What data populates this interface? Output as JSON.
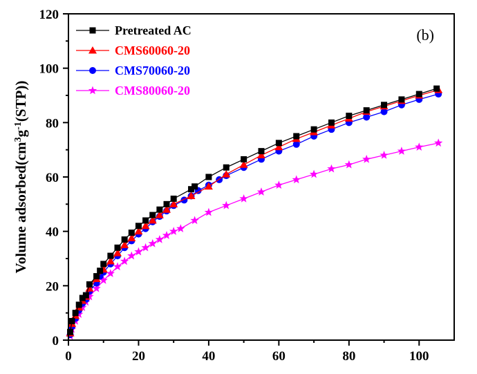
{
  "chart_data": {
    "type": "line",
    "title": "",
    "panel_label": "(b)",
    "xlabel": "",
    "ylabel_parts": [
      "Volume adsorbed(cm",
      "3",
      "g",
      "-1",
      "(STP))"
    ],
    "xlim": [
      0,
      110
    ],
    "ylim": [
      0,
      120
    ],
    "x_ticks": [
      0,
      20,
      40,
      60,
      80,
      100
    ],
    "y_ticks": [
      0,
      20,
      40,
      60,
      80,
      100,
      120
    ],
    "legend_position": "top-left",
    "series": [
      {
        "name": "Pretreated AC",
        "color": "#000000",
        "marker": "square",
        "x": [
          0.5,
          1,
          2,
          3,
          4,
          5,
          6,
          8,
          9,
          10,
          12,
          14,
          16,
          18,
          20,
          22,
          24,
          26,
          28,
          30,
          35,
          36,
          40,
          45,
          50,
          55,
          60,
          65,
          70,
          75,
          80,
          85,
          90,
          95,
          100,
          105
        ],
        "y": [
          3,
          7,
          10,
          13,
          15.5,
          16.5,
          20.5,
          23.5,
          25.5,
          28,
          31,
          34,
          37,
          39.5,
          42,
          44,
          46,
          48,
          50,
          52,
          55.5,
          56.5,
          60,
          63.5,
          66.5,
          69.5,
          72.5,
          75,
          77.5,
          80,
          82.5,
          84.5,
          86.5,
          88.5,
          90.5,
          92.5
        ]
      },
      {
        "name": "CMS60060-20",
        "color": "#ff0000",
        "marker": "triangle",
        "x": [
          0.5,
          1,
          2,
          3,
          4,
          5,
          6,
          8,
          10,
          12,
          14,
          16,
          18,
          20,
          22,
          24,
          26,
          28,
          30,
          35,
          40,
          45,
          50,
          55,
          60,
          65,
          70,
          75,
          80,
          85,
          90,
          95,
          100,
          105.5
        ],
        "y": [
          2.5,
          6,
          9,
          12,
          14.5,
          16,
          19,
          22.5,
          26,
          29,
          32,
          35,
          37.5,
          40,
          42,
          44,
          46,
          48,
          50,
          53,
          56.5,
          61,
          64.5,
          68,
          71,
          74,
          76.5,
          79,
          81.5,
          84,
          86,
          88,
          90,
          92
        ]
      },
      {
        "name": "CMS70060-20",
        "color": "#0000ff",
        "marker": "circle",
        "x": [
          0.5,
          1,
          2,
          3,
          4,
          5,
          6,
          8,
          9,
          10,
          12,
          14,
          16,
          18,
          20,
          22,
          24,
          26,
          28,
          30,
          33,
          35,
          37,
          40,
          43,
          45,
          50,
          55,
          60,
          65,
          70,
          75,
          80,
          85,
          90,
          95,
          100,
          105.5
        ],
        "y": [
          2,
          5,
          8,
          11,
          13.5,
          15,
          18,
          21,
          23.5,
          25,
          28,
          31,
          34,
          36.5,
          39,
          41,
          43.5,
          45.5,
          47.5,
          49.5,
          51.5,
          53,
          55,
          57,
          59,
          60.5,
          63.5,
          66.5,
          69.5,
          72,
          75,
          77.5,
          80,
          82,
          84,
          86.5,
          88.5,
          90.5
        ]
      },
      {
        "name": "CMS80060-20",
        "color": "#ff00ff",
        "marker": "star",
        "x": [
          0.5,
          1,
          2,
          3,
          4,
          5,
          6,
          8,
          10,
          12,
          14,
          16,
          18,
          20,
          22,
          24,
          26,
          28,
          30,
          32,
          36,
          40,
          45,
          50,
          55,
          60,
          65,
          70,
          75,
          80,
          85,
          90,
          95,
          100,
          105.5
        ],
        "y": [
          1.5,
          4,
          7,
          9.5,
          12,
          14,
          16,
          19,
          22,
          24.5,
          27,
          29,
          31,
          32.5,
          34,
          35.5,
          37,
          38.5,
          40,
          41,
          44,
          47,
          49.5,
          52,
          54.5,
          57,
          59,
          61,
          63,
          64.5,
          66.5,
          68,
          69.5,
          71,
          72.5
        ]
      }
    ]
  }
}
